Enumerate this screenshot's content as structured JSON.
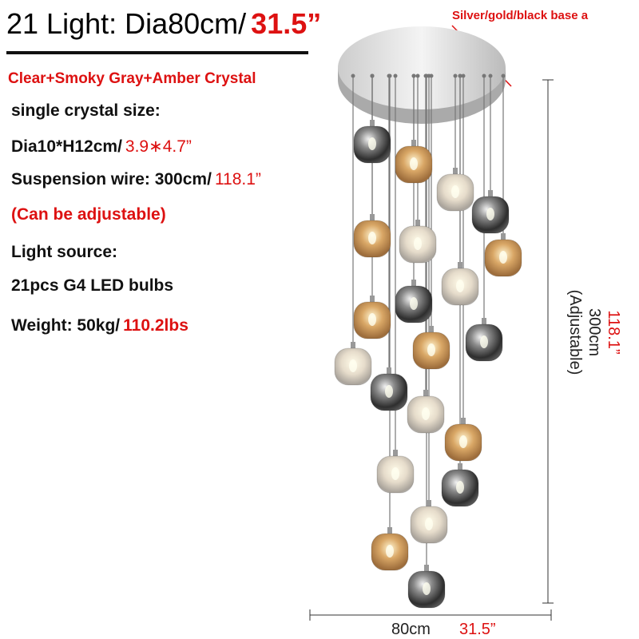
{
  "header": {
    "title": "21 Light: Dia80cm/",
    "title_inch": "31.5”",
    "base_note": "Silver/gold/black base a"
  },
  "specs": {
    "crystal": "Clear+Smoky Gray+Amber Crystal",
    "size_label": "single crystal size:",
    "size_metric": "Dia10*H12cm/",
    "size_inch": "3.9∗4.7”",
    "wire_metric": "Suspension wire: 300cm/",
    "wire_inch": "118.1”",
    "adjustable": "(Can be adjustable)",
    "source_label": "Light source:",
    "source": "21pcs G4 LED bulbs",
    "weight_metric": "Weight: 50kg/",
    "weight_imperial": "110.2lbs"
  },
  "dimensions": {
    "height_inch": "118.1”",
    "height_metric": "300cm",
    "height_note": "(Adjustable)",
    "width_metric": "80cm",
    "width_inch": "31.5”"
  }
}
